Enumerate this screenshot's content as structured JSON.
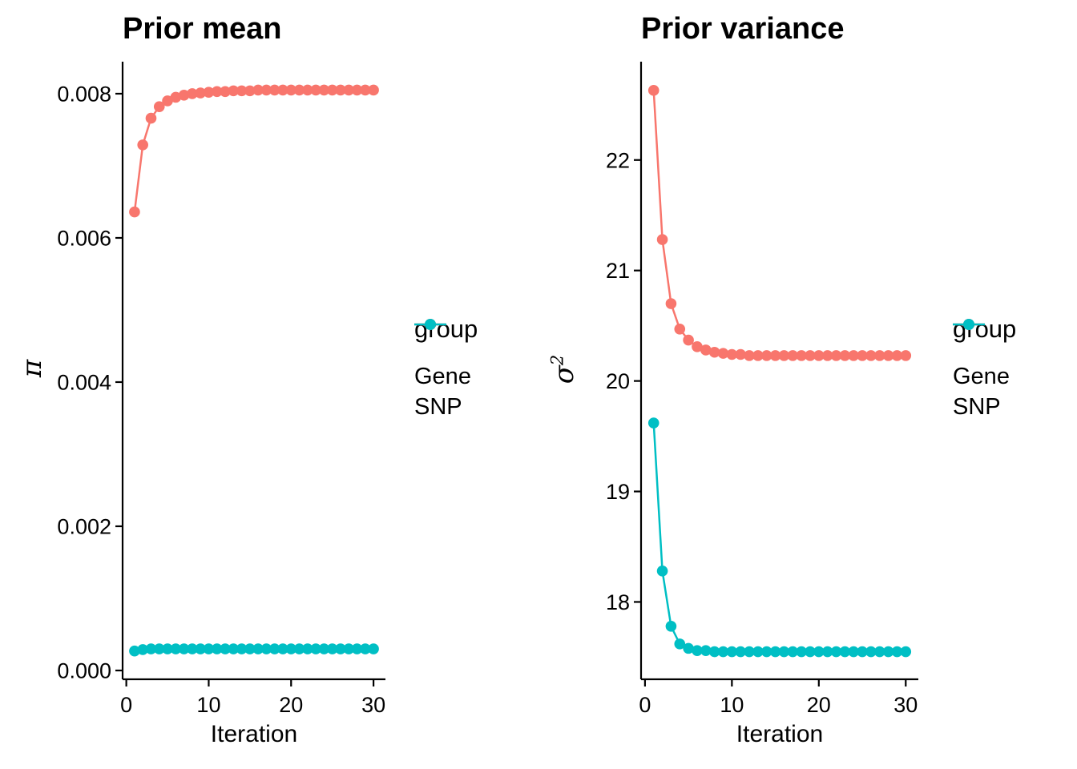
{
  "figure": {
    "background_color": "#FFFFFF",
    "text_color": "#000000",
    "axis_color": "#000000"
  },
  "chart_data": [
    {
      "type": "line",
      "title": "Prior mean",
      "xlabel": "Iteration",
      "ylabel": "π",
      "ylabel_superscript": "",
      "legend_title": "group",
      "legend_position": "right",
      "grid": false,
      "x": [
        1,
        2,
        3,
        4,
        5,
        6,
        7,
        8,
        9,
        10,
        11,
        12,
        13,
        14,
        15,
        16,
        17,
        18,
        19,
        20,
        21,
        22,
        23,
        24,
        25,
        26,
        27,
        28,
        29,
        30
      ],
      "xlim": [
        -0.45,
        31.45
      ],
      "ylim": [
        -0.000122,
        0.008444
      ],
      "xticks": [
        0,
        10,
        20,
        30
      ],
      "xtick_labels": [
        "0",
        "10",
        "20",
        "30"
      ],
      "yticks": [
        0,
        0.002,
        0.004,
        0.006,
        0.008
      ],
      "ytick_labels": [
        "0.000",
        "0.002",
        "0.004",
        "0.006",
        "0.008"
      ],
      "series": [
        {
          "name": "Gene",
          "color": "#F8766D",
          "values": [
            0.00636,
            0.00729,
            0.00766,
            0.00782,
            0.0079,
            0.00795,
            0.00798,
            0.008,
            0.00801,
            0.00802,
            0.00803,
            0.00803,
            0.00804,
            0.00804,
            0.00804,
            0.00805,
            0.00805,
            0.00805,
            0.00805,
            0.00805,
            0.00805,
            0.00805,
            0.00805,
            0.00805,
            0.00805,
            0.00805,
            0.00805,
            0.00805,
            0.00805,
            0.00805
          ]
        },
        {
          "name": "SNP",
          "color": "#00BFC4",
          "values": [
            0.00027,
            0.00029,
            0.0003,
            0.0003,
            0.0003,
            0.0003,
            0.0003,
            0.0003,
            0.0003,
            0.0003,
            0.0003,
            0.0003,
            0.0003,
            0.0003,
            0.0003,
            0.0003,
            0.0003,
            0.0003,
            0.0003,
            0.0003,
            0.0003,
            0.0003,
            0.0003,
            0.0003,
            0.0003,
            0.0003,
            0.0003,
            0.0003,
            0.0003,
            0.0003
          ]
        }
      ]
    },
    {
      "type": "line",
      "title": "Prior variance",
      "xlabel": "Iteration",
      "ylabel": "σ",
      "ylabel_superscript": "2",
      "legend_title": "group",
      "legend_position": "right",
      "grid": false,
      "x": [
        1,
        2,
        3,
        4,
        5,
        6,
        7,
        8,
        9,
        10,
        11,
        12,
        13,
        14,
        15,
        16,
        17,
        18,
        19,
        20,
        21,
        22,
        23,
        24,
        25,
        26,
        27,
        28,
        29,
        30
      ],
      "xlim": [
        -0.45,
        31.45
      ],
      "ylim": [
        17.3,
        22.89
      ],
      "xticks": [
        0,
        10,
        20,
        30
      ],
      "xtick_labels": [
        "0",
        "10",
        "20",
        "30"
      ],
      "yticks": [
        18,
        19,
        20,
        21,
        22
      ],
      "ytick_labels": [
        "18",
        "19",
        "20",
        "21",
        "22"
      ],
      "series": [
        {
          "name": "Gene",
          "color": "#F8766D",
          "values": [
            22.63,
            21.28,
            20.7,
            20.47,
            20.37,
            20.31,
            20.28,
            20.26,
            20.25,
            20.24,
            20.24,
            20.23,
            20.23,
            20.23,
            20.23,
            20.23,
            20.23,
            20.23,
            20.23,
            20.23,
            20.23,
            20.23,
            20.23,
            20.23,
            20.23,
            20.23,
            20.23,
            20.23,
            20.23,
            20.23
          ]
        },
        {
          "name": "SNP",
          "color": "#00BFC4",
          "values": [
            19.62,
            18.28,
            17.78,
            17.62,
            17.58,
            17.56,
            17.56,
            17.55,
            17.55,
            17.55,
            17.55,
            17.55,
            17.55,
            17.55,
            17.55,
            17.55,
            17.55,
            17.55,
            17.55,
            17.55,
            17.55,
            17.55,
            17.55,
            17.55,
            17.55,
            17.55,
            17.55,
            17.55,
            17.55,
            17.55
          ]
        }
      ]
    }
  ]
}
